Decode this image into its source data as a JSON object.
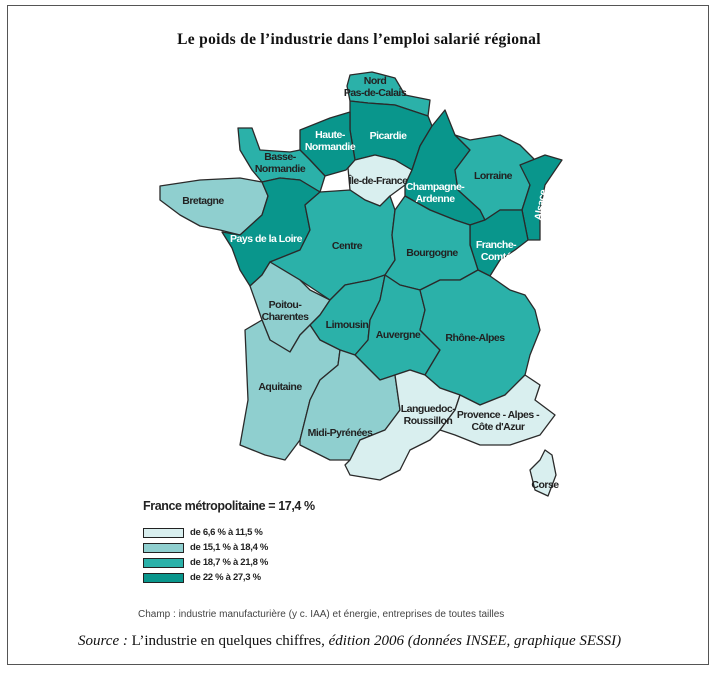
{
  "title": "Le poids de l’industrie dans l’emploi salarié régional",
  "average_label": "France métropolitaine = 17,4 %",
  "legend": [
    {
      "label": "de 6,6 % à 11,5 %",
      "color": "#d9efef"
    },
    {
      "label": "de 15,1 % à 18,4 %",
      "color": "#8fcfcf"
    },
    {
      "label": "de 18,7 % à 21,8 %",
      "color": "#2bb1a9"
    },
    {
      "label": "de 22 % à 27,3 %",
      "color": "#09968c"
    }
  ],
  "regions": [
    {
      "name": "Nord Pas-de-Calais",
      "lines": [
        "Nord",
        "Pas-de-Calais"
      ],
      "class": 3
    },
    {
      "name": "Picardie",
      "lines": [
        "Picardie"
      ],
      "class": 4
    },
    {
      "name": "Haute-Normandie",
      "lines": [
        "Haute-",
        "Normandie"
      ],
      "class": 4
    },
    {
      "name": "Basse-Normandie",
      "lines": [
        "Basse-",
        "Normandie"
      ],
      "class": 3
    },
    {
      "name": "Bretagne",
      "lines": [
        "Bretagne"
      ],
      "class": 2
    },
    {
      "name": "Pays de la Loire",
      "lines": [
        "Pays de la Loire"
      ],
      "class": 4
    },
    {
      "name": "Île-de-France",
      "lines": [
        "Île-de-France"
      ],
      "class": 1
    },
    {
      "name": "Centre",
      "lines": [
        "Centre"
      ],
      "class": 3
    },
    {
      "name": "Champagne-Ardenne",
      "lines": [
        "Champagne-",
        "Ardenne"
      ],
      "class": 4
    },
    {
      "name": "Lorraine",
      "lines": [
        "Lorraine"
      ],
      "class": 3
    },
    {
      "name": "Alsace",
      "lines": [
        "Alsace"
      ],
      "class": 4
    },
    {
      "name": "Franche-Comté",
      "lines": [
        "Franche-",
        "Comté"
      ],
      "class": 4
    },
    {
      "name": "Bourgogne",
      "lines": [
        "Bourgogne"
      ],
      "class": 3
    },
    {
      "name": "Poitou-Charentes",
      "lines": [
        "Poitou-",
        "Charentes"
      ],
      "class": 2
    },
    {
      "name": "Limousin",
      "lines": [
        "Limousin"
      ],
      "class": 3
    },
    {
      "name": "Auvergne",
      "lines": [
        "Auvergne"
      ],
      "class": 3
    },
    {
      "name": "Rhône-Alpes",
      "lines": [
        "Rhône-Alpes"
      ],
      "class": 3
    },
    {
      "name": "Aquitaine",
      "lines": [
        "Aquitaine"
      ],
      "class": 2
    },
    {
      "name": "Midi-Pyrénées",
      "lines": [
        "Midi-Pyrénées"
      ],
      "class": 2
    },
    {
      "name": "Languedoc-Roussillon",
      "lines": [
        "Languedoc-",
        "Roussillon"
      ],
      "class": 1
    },
    {
      "name": "Provence - Alpes - Côte d'Azur",
      "lines": [
        "Provence - Alpes -",
        "Côte d'Azur"
      ],
      "class": 1
    },
    {
      "name": "Corse",
      "lines": [
        "Corse"
      ],
      "class": 1
    }
  ],
  "champ": "Champ : industrie manufacturière (y c. IAA) et énergie, entreprises de toutes tailles",
  "source": {
    "prefix": "Source :",
    "title": " L’industrie en quelques chiffres,",
    "rest": " édition 2006 (données INSEE, graphique SESSI)"
  }
}
